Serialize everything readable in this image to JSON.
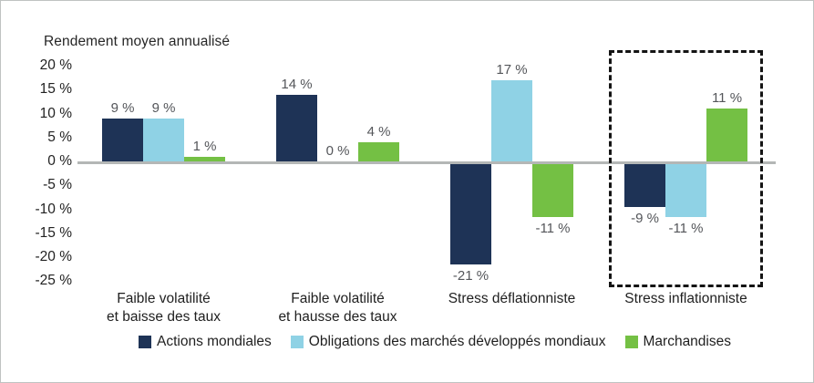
{
  "frame": {
    "background": "#ffffff",
    "border_color": "#bfc3c2"
  },
  "colors": {
    "axis_line": "#b4b7b6",
    "value_label": "#54565a",
    "text": "#1f1f1f",
    "highlight_border": "#141414"
  },
  "chart_data": {
    "type": "bar",
    "title": "Rendement moyen annualisé",
    "xlabel": "",
    "ylabel": "",
    "ylim": [
      -25,
      20
    ],
    "grid": false,
    "legend_position": "bottom",
    "y_ticks": [
      "20 %",
      "15 %",
      "10 %",
      "5 %",
      "0 %",
      "-5 %",
      "-10 %",
      "-15 %",
      "-20 %",
      "-25 %"
    ],
    "categories": [
      [
        "Faible volatilité",
        "et baisse des taux"
      ],
      [
        "Faible volatilité",
        "et hausse des taux"
      ],
      [
        "Stress déflationniste"
      ],
      [
        "Stress inflationniste"
      ]
    ],
    "series": [
      {
        "name": "Actions mondiales",
        "color": "#1e3356",
        "values": [
          9,
          14,
          -21,
          -9
        ],
        "labels": [
          "9 %",
          "14 %",
          "-21 %",
          "-9 %"
        ]
      },
      {
        "name": "Obligations des marchés développés mondiaux",
        "color": "#8fd2e5",
        "values": [
          9,
          0,
          17,
          -11
        ],
        "labels": [
          "9 %",
          "0 %",
          "17 %",
          "-11 %"
        ]
      },
      {
        "name": "Marchandises",
        "color": "#74c044",
        "values": [
          1,
          4,
          -11,
          11
        ],
        "labels": [
          "1 %",
          "4 %",
          "-11 %",
          "11 %"
        ]
      }
    ],
    "highlight": {
      "style": "dashed-box",
      "category": "Stress inflationniste",
      "category_index": 3
    }
  }
}
